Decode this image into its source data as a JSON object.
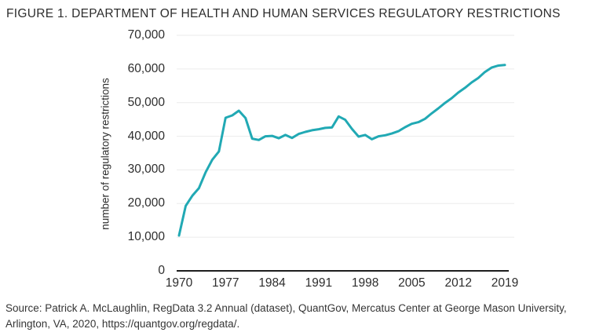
{
  "figure": {
    "title": "FIGURE 1. DEPARTMENT OF HEALTH AND HUMAN SERVICES REGULATORY RESTRICTIONS",
    "source": {
      "line1": "Source: Patrick A. McLaughlin, RegData 3.2 Annual (dataset), QuantGov, Mercatus Center at George Mason University,",
      "line2_prefix": "Arlington, VA, 2020, ",
      "url": "https://quantgov.org/regdata/",
      "line2_suffix": "."
    }
  },
  "colors": {
    "line": "#21a9b4",
    "grid": "#ebebeb",
    "axis": "#1e1e1e",
    "text": "#2d2d2d"
  },
  "chart_data": {
    "type": "line",
    "title": "FIGURE 1. DEPARTMENT OF HEALTH AND HUMAN SERVICES REGULATORY RESTRICTIONS",
    "xlabel": "",
    "ylabel": "number of regulatory restrictions",
    "xlim": [
      1970,
      2019
    ],
    "ylim": [
      0,
      70000
    ],
    "x_ticks": [
      1970,
      1977,
      1984,
      1991,
      1998,
      2005,
      2012,
      2019
    ],
    "y_ticks": [
      0,
      10000,
      20000,
      30000,
      40000,
      50000,
      60000,
      70000
    ],
    "y_tick_labels": [
      "0",
      "10,000",
      "20,000",
      "30,000",
      "40,000",
      "50,000",
      "60,000",
      "70,000"
    ],
    "grid": "horizontal",
    "legend": "none",
    "series": [
      {
        "name": "HHS regulatory restrictions",
        "x": [
          1970,
          1971,
          1972,
          1973,
          1974,
          1975,
          1976,
          1977,
          1978,
          1979,
          1980,
          1981,
          1982,
          1983,
          1984,
          1985,
          1986,
          1987,
          1988,
          1989,
          1990,
          1991,
          1992,
          1993,
          1994,
          1995,
          1996,
          1997,
          1998,
          1999,
          2000,
          2001,
          2002,
          2003,
          2004,
          2005,
          2006,
          2007,
          2008,
          2009,
          2010,
          2011,
          2012,
          2013,
          2014,
          2015,
          2016,
          2017,
          2018,
          2019
        ],
        "values": [
          10500,
          19300,
          22300,
          24600,
          29300,
          33000,
          35500,
          45500,
          46200,
          47600,
          45400,
          39300,
          38900,
          40000,
          40100,
          39400,
          40400,
          39500,
          40700,
          41300,
          41800,
          42100,
          42500,
          42600,
          45900,
          44900,
          42200,
          39900,
          40400,
          39100,
          40000,
          40300,
          40800,
          41500,
          42700,
          43700,
          44200,
          45200,
          46800,
          48300,
          49900,
          51300,
          53000,
          54400,
          56000,
          57300,
          59100,
          60400,
          61000,
          61200
        ]
      }
    ]
  }
}
